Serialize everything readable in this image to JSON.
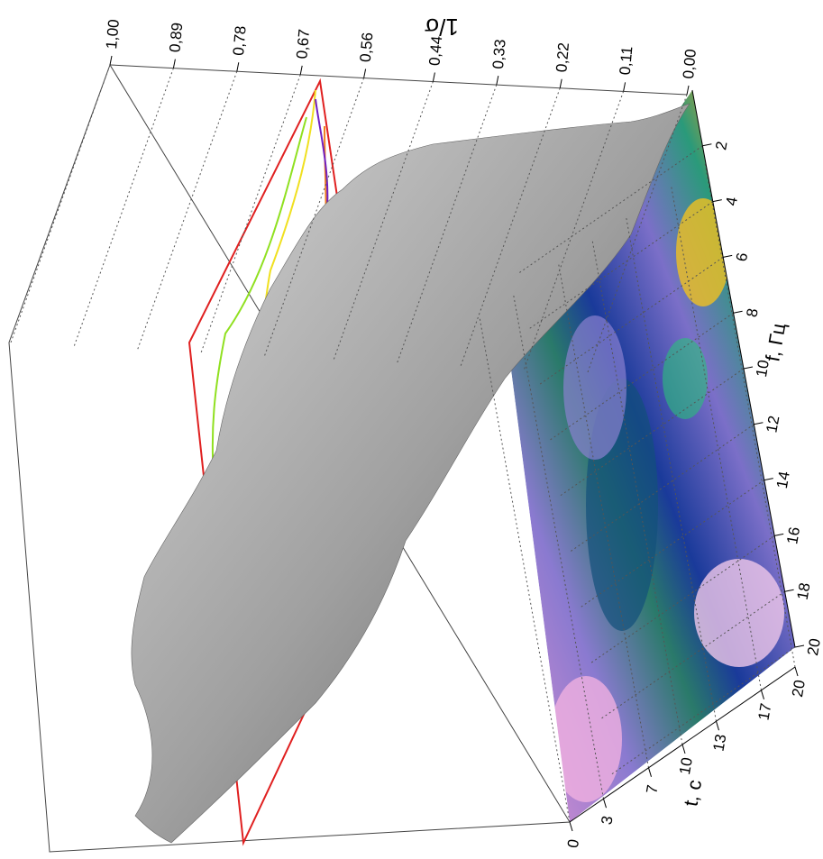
{
  "chart_data": {
    "type": "surface3d",
    "xlabel": "t, c",
    "xlim": [
      0,
      20
    ],
    "xticks": [
      0,
      3,
      7,
      10,
      13,
      17,
      20
    ],
    "ylabel": "f, Гц",
    "ylim": [
      0,
      20
    ],
    "yticks": [
      2,
      4,
      6,
      8,
      10,
      12,
      14,
      16,
      18,
      20
    ],
    "zlabel": "1/σ",
    "zlim": [
      0,
      1
    ],
    "zticks": [
      {
        "value": 1.0,
        "label": "1,00"
      },
      {
        "value": 0.89,
        "label": "0,89"
      },
      {
        "value": 0.78,
        "label": "0,78"
      },
      {
        "value": 0.67,
        "label": "0,67"
      },
      {
        "value": 0.56,
        "label": "0,56"
      },
      {
        "value": 0.44,
        "label": "0,44"
      },
      {
        "value": 0.33,
        "label": "0,33"
      },
      {
        "value": 0.22,
        "label": "0,22"
      },
      {
        "value": 0.11,
        "label": "0,11"
      },
      {
        "value": 0,
        "label": "0,00"
      }
    ],
    "grid": true
  }
}
